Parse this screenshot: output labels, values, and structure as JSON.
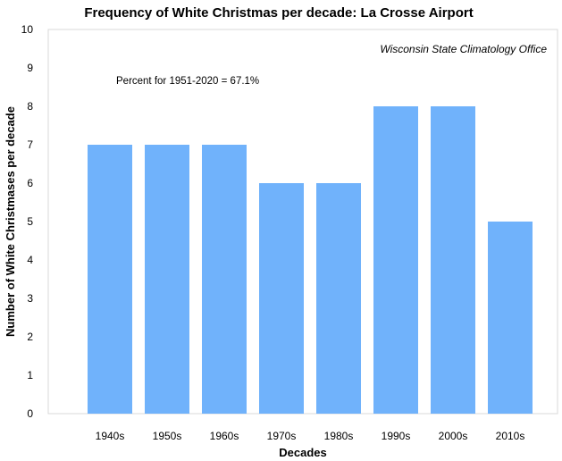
{
  "chart_data": {
    "type": "bar",
    "title": "Frequency of White Christmas per decade: La Crosse Airport",
    "xlabel": "Decades",
    "ylabel": "Number  of White Christmases per decade",
    "categories": [
      "1940s",
      "1950s",
      "1960s",
      "1970s",
      "1980s",
      "1990s",
      "2000s",
      "2010s"
    ],
    "values": [
      7,
      7,
      7,
      6,
      6,
      8,
      8,
      5
    ],
    "ylim": [
      0,
      10
    ],
    "yticks": [
      0,
      1,
      2,
      3,
      4,
      5,
      6,
      7,
      8,
      9,
      10
    ],
    "grid": false,
    "bar_color": "#70b2fb",
    "annotations": {
      "percent_note": "Percent for 1951-2020 = 67.1%",
      "source": "Wisconsin State Climatology Office"
    }
  }
}
